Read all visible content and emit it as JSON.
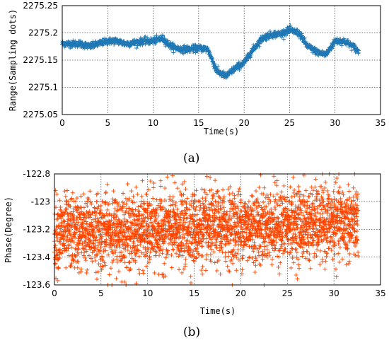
{
  "chart_data": [
    {
      "type": "scatter",
      "panel_label": "(a)",
      "xlabel": "Time(s)",
      "ylabel": "Range(Sampling dots)",
      "xlim": [
        0,
        35
      ],
      "ylim": [
        2275.05,
        2275.25
      ],
      "x_ticks": [
        "0",
        "5",
        "10",
        "15",
        "20",
        "25",
        "30",
        "35"
      ],
      "y_ticks": [
        "2275.05",
        "2275.1",
        "2275.15",
        "2275.2",
        "2275.25"
      ],
      "grid": true,
      "marker": "+",
      "color": "#1f77b4",
      "series": [
        {
          "x": [
            0,
            1,
            2,
            3,
            4,
            5,
            6,
            7,
            8,
            9,
            10,
            11,
            12,
            13,
            14,
            15,
            16,
            17,
            18,
            19,
            20,
            21,
            22,
            23,
            24,
            25,
            26,
            27,
            28,
            29,
            30,
            31,
            32,
            32.6
          ],
          "values": [
            2275.18,
            2275.18,
            2275.18,
            2275.175,
            2275.18,
            2275.185,
            2275.185,
            2275.18,
            2275.182,
            2275.185,
            2275.185,
            2275.19,
            2275.175,
            2275.17,
            2275.17,
            2275.172,
            2275.17,
            2275.13,
            2275.12,
            2275.135,
            2275.145,
            2275.17,
            2275.19,
            2275.197,
            2275.198,
            2275.205,
            2275.2,
            2275.175,
            2275.165,
            2275.16,
            2275.185,
            2275.185,
            2275.175,
            2275.165
          ],
          "noise": 0.003
        }
      ]
    },
    {
      "type": "scatter",
      "panel_label": "(b)",
      "xlabel": "Time(s)",
      "ylabel": "Phase(Degree)",
      "xlim": [
        0,
        35
      ],
      "ylim": [
        -123.6,
        -122.8
      ],
      "x_ticks": [
        "0",
        "5",
        "10",
        "15",
        "20",
        "25",
        "30",
        "35"
      ],
      "y_ticks": [
        "-123.6",
        "-123.4",
        "-123.2",
        "-123",
        "-122.8"
      ],
      "grid": true,
      "marker": "+",
      "color": "#ff4500",
      "series": [
        {
          "x": [
            0,
            32.6
          ],
          "values": [
            -123.23,
            -123.15
          ],
          "spread": 0.13
        }
      ]
    }
  ]
}
